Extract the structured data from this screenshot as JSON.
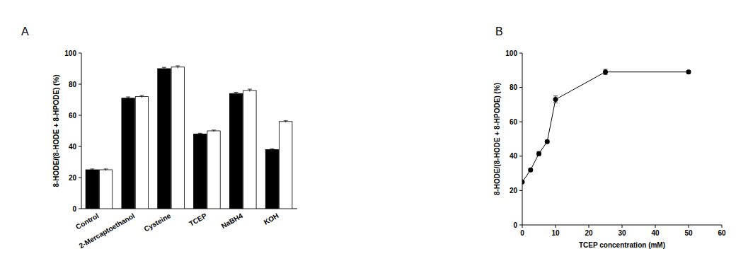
{
  "chart_data": [
    {
      "type": "bar",
      "title": "A",
      "categories": [
        "Control",
        "2-Mercaptoethanol",
        "Cysteine",
        "TCEP",
        "NaBH4",
        "KOH"
      ],
      "series": [
        {
          "color": "#000000",
          "values": [
            25,
            71,
            90,
            48,
            74,
            38
          ],
          "errors": [
            0.5,
            0.8,
            0.8,
            0.5,
            0.8,
            0.5
          ]
        },
        {
          "color": "#ffffff",
          "values": [
            25,
            72,
            91,
            50,
            76,
            56
          ],
          "errors": [
            0.5,
            0.8,
            0.8,
            0.5,
            0.8,
            0.5
          ]
        }
      ],
      "y_label": "8-HODE/(8-HODE + 8-HPODE) (%)",
      "ylim": [
        0,
        100
      ],
      "yticks": [
        0,
        20,
        40,
        60,
        80,
        100
      ]
    },
    {
      "type": "line",
      "title": "B",
      "x": [
        0,
        2.5,
        5,
        7.5,
        10,
        25,
        50
      ],
      "series": [
        {
          "color": "#000000",
          "marker": "circle",
          "line_style": "solid",
          "values": [
            25,
            32,
            41.5,
            48.5,
            73,
            89,
            89
          ],
          "errors": [
            0.5,
            0.8,
            1.2,
            0.8,
            2,
            1.5,
            0.8
          ]
        }
      ],
      "x_label": "TCEP concentration (mM)",
      "y_label": "8-HODE/(8-HODE + 8-HPODE) (%)",
      "xlim": [
        0,
        60
      ],
      "xticks": [
        0,
        10,
        20,
        30,
        40,
        50,
        60
      ],
      "ylim": [
        0,
        100
      ],
      "yticks": [
        0,
        20,
        40,
        60,
        80,
        100
      ]
    }
  ]
}
